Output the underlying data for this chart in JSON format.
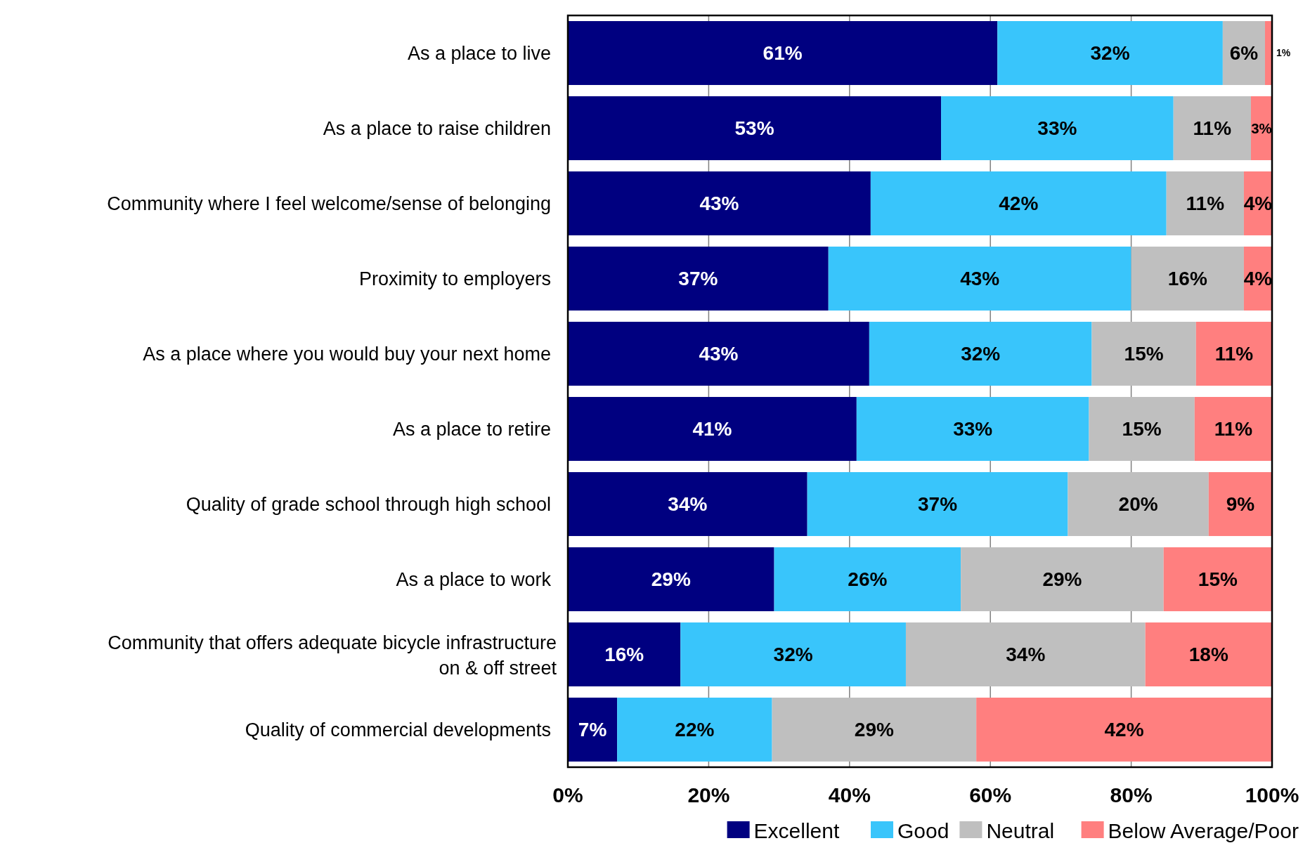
{
  "chart_data": {
    "type": "bar",
    "orientation": "horizontal",
    "stacked": true,
    "categories": [
      "As a place to live",
      "As a place to raise children",
      "Community where I feel welcome/sense of belonging",
      "Proximity to employers",
      "As a place where you would buy your next home",
      "As a place to retire",
      "Quality of grade school through high school",
      "As a place to work",
      "Community that offers adequate bicycle infrastructure on & off street",
      "Quality of commercial developments"
    ],
    "series": [
      {
        "name": "Excellent",
        "color": "#000080",
        "values": [
          61,
          53,
          43,
          37,
          42.8,
          41,
          34,
          29.3,
          16,
          7
        ],
        "value_labels": [
          "61%",
          "53%",
          "43%",
          "37%",
          "43%",
          "41%",
          "34%",
          "29%",
          "16%",
          "7%"
        ]
      },
      {
        "name": "Good",
        "color": "#39c5fb",
        "values": [
          32,
          33,
          42,
          43,
          31.6,
          33,
          37,
          26.5,
          32,
          22
        ],
        "value_labels": [
          "32%",
          "33%",
          "42%",
          "43%",
          "32%",
          "33%",
          "37%",
          "26%",
          "32%",
          "22%"
        ]
      },
      {
        "name": "Neutral",
        "color": "#bfbfbf",
        "values": [
          6,
          11,
          11,
          16,
          14.8,
          15,
          20,
          28.8,
          34,
          29
        ],
        "value_labels": [
          "6%",
          "11%",
          "11%",
          "16%",
          "15%",
          "15%",
          "20%",
          "29%",
          "34%",
          "29%"
        ]
      },
      {
        "name": "Below Average/Poor",
        "color": "#ff7f7f",
        "values": [
          1,
          3,
          4,
          4,
          10.8,
          11,
          9,
          15.4,
          18,
          42
        ],
        "value_labels": [
          "1%",
          "3%",
          "4%",
          "4%",
          "11%",
          "11%",
          "9%",
          "15%",
          "18%",
          "42%"
        ]
      }
    ],
    "xlim": [
      0,
      100
    ],
    "xticks": [
      {
        "value": 0,
        "label": "0%"
      },
      {
        "value": 20,
        "label": "20%"
      },
      {
        "value": 40,
        "label": "40%"
      },
      {
        "value": 60,
        "label": "60%"
      },
      {
        "value": 80,
        "label": "80%"
      },
      {
        "value": 100,
        "label": "100%"
      }
    ],
    "grid": "x",
    "legend": "bottom"
  }
}
